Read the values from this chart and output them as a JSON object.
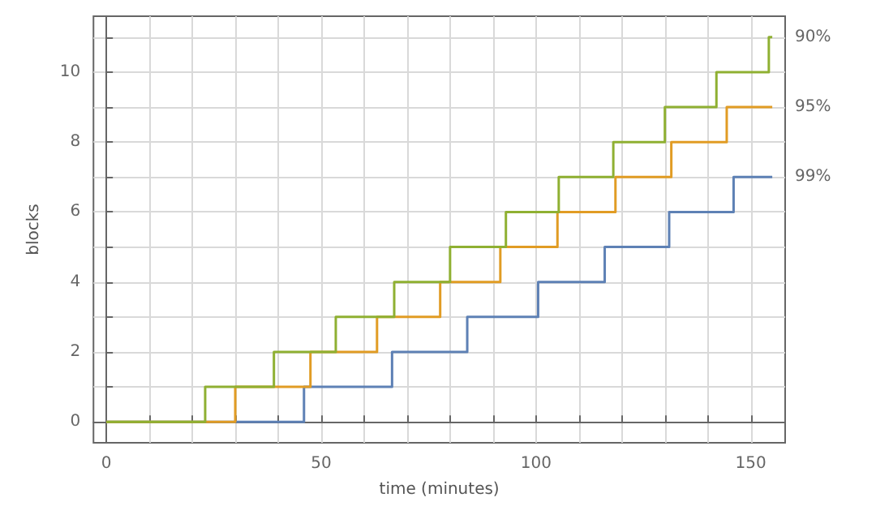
{
  "chart_data": {
    "type": "step",
    "xlabel": "time (minutes)",
    "ylabel": "blocks",
    "xlim": [
      -3,
      158
    ],
    "ylim": [
      -0.6,
      11.6
    ],
    "xticks": [
      0,
      {
        "value": 10,
        "label": null
      },
      {
        "value": 20,
        "label": null
      },
      {
        "value": 30,
        "label": null
      },
      {
        "value": 40,
        "label": null
      },
      50,
      {
        "value": 60,
        "label": null
      },
      {
        "value": 70,
        "label": null
      },
      {
        "value": 80,
        "label": null
      },
      {
        "value": 90,
        "label": null
      },
      100,
      {
        "value": 110,
        "label": null
      },
      {
        "value": 120,
        "label": null
      },
      {
        "value": 130,
        "label": null
      },
      {
        "value": 140,
        "label": null
      },
      150
    ],
    "yticks": [
      0,
      {
        "value": 1,
        "label": null
      },
      2,
      {
        "value": 3,
        "label": null
      },
      4,
      {
        "value": 5,
        "label": null
      },
      6,
      {
        "value": 7,
        "label": null
      },
      8,
      {
        "value": 9,
        "label": null
      },
      10,
      {
        "value": 11,
        "label": null
      }
    ],
    "grid": true,
    "marker": "none",
    "line_style": "solid",
    "series": [
      {
        "name": "99%",
        "color": "#5e81b5",
        "x": [
          0,
          46,
          66.5,
          84,
          100.5,
          116,
          131,
          146,
          155
        ],
        "values": [
          0,
          1,
          2,
          3,
          4,
          5,
          6,
          7,
          7
        ]
      },
      {
        "name": "95%",
        "color": "#e19c24",
        "x": [
          0,
          30,
          47.5,
          63,
          77.7,
          91.7,
          105,
          118.5,
          131.5,
          144.4,
          155
        ],
        "values": [
          0,
          1,
          2,
          3,
          4,
          5,
          6,
          7,
          8,
          9,
          9
        ]
      },
      {
        "name": "90%",
        "color": "#8fb032",
        "x": [
          0,
          23,
          39,
          53.4,
          67,
          80,
          93,
          105.3,
          118,
          130,
          142,
          154.2,
          155
        ],
        "values": [
          0,
          1,
          2,
          3,
          4,
          5,
          6,
          7,
          8,
          9,
          10,
          11,
          11
        ]
      }
    ]
  }
}
